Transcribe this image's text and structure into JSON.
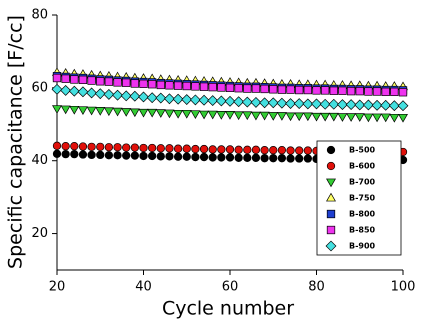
{
  "chart_data": {
    "type": "scatter",
    "xlabel": "Cycle number",
    "ylabel": "Specific capacitance [F/cc]",
    "xlim": [
      20,
      100
    ],
    "xticks": [
      20,
      40,
      60,
      80,
      100
    ],
    "ylim": [
      10,
      80
    ],
    "yticks": [
      20,
      40,
      60,
      80
    ],
    "legend": "lower right",
    "x": [
      20,
      22,
      24,
      26,
      28,
      30,
      32,
      34,
      36,
      38,
      40,
      42,
      44,
      46,
      48,
      50,
      52,
      54,
      56,
      58,
      60,
      62,
      64,
      66,
      68,
      70,
      72,
      74,
      76,
      78,
      80,
      82,
      84,
      86,
      88,
      90,
      92,
      94,
      96,
      98,
      100
    ],
    "series": [
      {
        "name": "B-500",
        "color": "#000000",
        "marker": "circle",
        "values": [
          41.9,
          41.8,
          41.8,
          41.7,
          41.6,
          41.6,
          41.5,
          41.5,
          41.4,
          41.4,
          41.3,
          41.3,
          41.2,
          41.2,
          41.1,
          41.1,
          41.0,
          41.0,
          40.9,
          40.9,
          40.9,
          40.8,
          40.8,
          40.8,
          40.7,
          40.7,
          40.7,
          40.6,
          40.6,
          40.6,
          40.5,
          40.5,
          40.5,
          40.4,
          40.4,
          40.4,
          40.3,
          40.3,
          40.3,
          40.2,
          40.2
        ]
      },
      {
        "name": "B-600",
        "color": "#e0100a",
        "marker": "circle",
        "values": [
          44.1,
          44.0,
          44.0,
          43.9,
          43.8,
          43.8,
          43.7,
          43.7,
          43.6,
          43.6,
          43.5,
          43.5,
          43.4,
          43.4,
          43.3,
          43.3,
          43.2,
          43.2,
          43.1,
          43.1,
          43.1,
          43.0,
          43.0,
          43.0,
          42.9,
          42.9,
          42.9,
          42.8,
          42.8,
          42.8,
          42.7,
          42.7,
          42.7,
          42.6,
          42.6,
          42.6,
          42.5,
          42.5,
          42.5,
          42.4,
          42.4
        ]
      },
      {
        "name": "B-700",
        "color": "#33cc33",
        "marker": "triangle-down",
        "values": [
          54.3,
          54.2,
          54.1,
          54.0,
          53.9,
          53.8,
          53.7,
          53.6,
          53.5,
          53.4,
          53.3,
          53.3,
          53.2,
          53.1,
          53.0,
          53.0,
          52.9,
          52.8,
          52.8,
          52.7,
          52.7,
          52.6,
          52.6,
          52.5,
          52.5,
          52.4,
          52.4,
          52.3,
          52.3,
          52.3,
          52.2,
          52.2,
          52.2,
          52.1,
          52.1,
          52.1,
          52.0,
          52.0,
          52.0,
          51.9,
          51.9
        ]
      },
      {
        "name": "B-750",
        "color": "#ffff66",
        "marker": "triangle-up",
        "values": [
          64.2,
          64.0,
          63.8,
          63.7,
          63.5,
          63.3,
          63.2,
          63.0,
          62.9,
          62.7,
          62.6,
          62.5,
          62.3,
          62.2,
          62.1,
          62.0,
          61.9,
          61.8,
          61.7,
          61.6,
          61.5,
          61.4,
          61.3,
          61.3,
          61.2,
          61.1,
          61.0,
          61.0,
          60.9,
          60.9,
          60.8,
          60.8,
          60.7,
          60.7,
          60.6,
          60.6,
          60.5,
          60.5,
          60.4,
          60.4,
          60.3
        ]
      },
      {
        "name": "B-800",
        "color": "#1f3fd0",
        "marker": "square",
        "values": [
          63.2,
          63.0,
          62.8,
          62.7,
          62.5,
          62.3,
          62.2,
          62.0,
          61.9,
          61.7,
          61.6,
          61.5,
          61.3,
          61.2,
          61.1,
          61.0,
          60.9,
          60.8,
          60.7,
          60.6,
          60.5,
          60.4,
          60.3,
          60.3,
          60.2,
          60.1,
          60.0,
          60.0,
          59.9,
          59.9,
          59.8,
          59.8,
          59.7,
          59.7,
          59.6,
          59.6,
          59.5,
          59.5,
          59.4,
          59.4,
          59.3
        ]
      },
      {
        "name": "B-850",
        "color": "#ee33ee",
        "marker": "square",
        "values": [
          62.7,
          62.5,
          62.3,
          62.2,
          62.0,
          61.8,
          61.7,
          61.5,
          61.4,
          61.2,
          61.1,
          61.0,
          60.8,
          60.7,
          60.6,
          60.5,
          60.4,
          60.3,
          60.2,
          60.1,
          60.0,
          59.9,
          59.8,
          59.8,
          59.7,
          59.6,
          59.5,
          59.5,
          59.4,
          59.4,
          59.3,
          59.3,
          59.2,
          59.2,
          59.1,
          59.1,
          59.0,
          59.0,
          58.9,
          58.9,
          58.8
        ]
      },
      {
        "name": "B-900",
        "color": "#44e0e0",
        "marker": "diamond",
        "values": [
          59.6,
          59.3,
          59.1,
          58.9,
          58.6,
          58.4,
          58.2,
          58.0,
          57.8,
          57.7,
          57.5,
          57.3,
          57.2,
          57.0,
          56.9,
          56.8,
          56.7,
          56.6,
          56.5,
          56.4,
          56.3,
          56.2,
          56.1,
          56.0,
          55.9,
          55.9,
          55.8,
          55.7,
          55.7,
          55.6,
          55.6,
          55.5,
          55.5,
          55.4,
          55.4,
          55.3,
          55.3,
          55.2,
          55.2,
          55.1,
          55.1
        ]
      }
    ]
  }
}
